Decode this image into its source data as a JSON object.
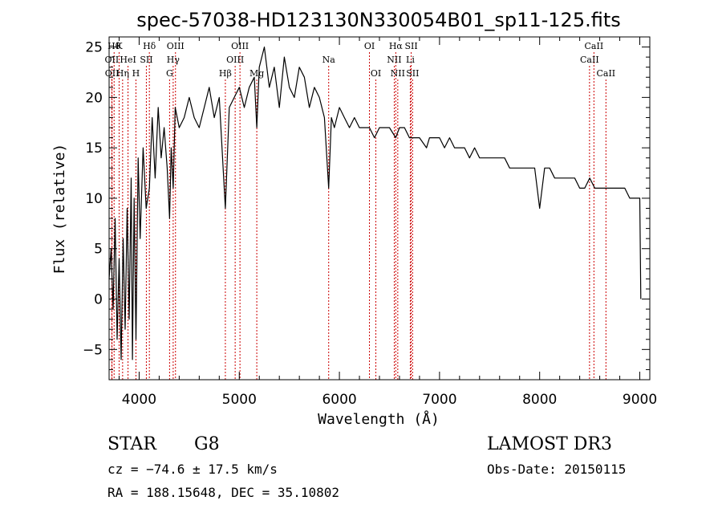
{
  "chart_data": {
    "type": "line",
    "title": "spec-57038-HD123130N330054B01_sp11-125.fits",
    "xlabel": "Wavelength (Å)",
    "ylabel": "Flux (relative)",
    "xlim": [
      3700,
      9100
    ],
    "ylim": [
      -8,
      26
    ],
    "xticks": [
      4000,
      5000,
      6000,
      7000,
      8000,
      9000
    ],
    "yticks": [
      -5,
      0,
      5,
      10,
      15,
      20,
      25
    ],
    "grid": false,
    "legend": "none",
    "colors": {
      "line": "#000000",
      "marker_lines": "#cc0000"
    },
    "series": [
      {
        "name": "",
        "x": [
          3700,
          3720,
          3740,
          3760,
          3780,
          3800,
          3820,
          3840,
          3860,
          3880,
          3900,
          3920,
          3933,
          3950,
          3968,
          3990,
          4010,
          4040,
          4070,
          4102,
          4130,
          4160,
          4190,
          4220,
          4250,
          4280,
          4304,
          4320,
          4340,
          4360,
          4400,
          4450,
          4500,
          4550,
          4600,
          4650,
          4700,
          4750,
          4800,
          4861,
          4900,
          4950,
          5000,
          5050,
          5100,
          5150,
          5175,
          5200,
          5250,
          5300,
          5350,
          5400,
          5450,
          5500,
          5550,
          5600,
          5650,
          5700,
          5750,
          5800,
          5850,
          5893,
          5920,
          5950,
          6000,
          6050,
          6100,
          6150,
          6200,
          6250,
          6300,
          6350,
          6400,
          6450,
          6500,
          6563,
          6600,
          6650,
          6700,
          6750,
          6800,
          6870,
          6900,
          6950,
          7000,
          7050,
          7100,
          7150,
          7200,
          7250,
          7300,
          7350,
          7400,
          7450,
          7500,
          7550,
          7600,
          7650,
          7700,
          7750,
          7800,
          7850,
          7900,
          7950,
          8000,
          8050,
          8100,
          8150,
          8200,
          8250,
          8300,
          8350,
          8400,
          8450,
          8500,
          8550,
          8600,
          8650,
          8700,
          8750,
          8800,
          8850,
          8900,
          8950,
          9000,
          9010
        ],
        "y": [
          2,
          5,
          -1,
          8,
          -4,
          4,
          -6,
          6,
          -3,
          9,
          -2,
          12,
          -6,
          10,
          -4,
          14,
          6,
          15,
          9,
          11,
          18,
          12,
          19,
          14,
          17,
          13,
          8,
          15,
          11,
          19,
          17,
          18,
          20,
          18,
          17,
          19,
          21,
          18,
          20,
          9,
          19,
          20,
          21,
          19,
          21,
          22,
          17,
          23,
          25,
          21,
          23,
          19,
          24,
          21,
          20,
          23,
          22,
          19,
          21,
          20,
          18,
          11,
          18,
          17,
          19,
          18,
          17,
          18,
          17,
          17,
          17,
          16,
          17,
          17,
          17,
          16,
          17,
          17,
          16,
          16,
          16,
          15,
          16,
          16,
          16,
          15,
          16,
          15,
          15,
          15,
          14,
          15,
          14,
          14,
          14,
          14,
          14,
          14,
          13,
          13,
          13,
          13,
          13,
          13,
          9,
          13,
          13,
          12,
          12,
          12,
          12,
          12,
          11,
          11,
          12,
          11,
          11,
          11,
          11,
          11,
          11,
          11,
          10,
          10,
          10,
          0
        ]
      }
    ],
    "line_markers": [
      {
        "label": "Hθ",
        "x": 3750,
        "row": 0
      },
      {
        "label": "K",
        "x": 3800,
        "row": 0
      },
      {
        "label": "Hδ",
        "x": 4102,
        "row": 0
      },
      {
        "label": "OIII",
        "x": 4363,
        "row": 0
      },
      {
        "label": "OIII",
        "x": 5007,
        "row": 0
      },
      {
        "label": "OI",
        "x": 6300,
        "row": 0
      },
      {
        "label": "Hα",
        "x": 6563,
        "row": 0
      },
      {
        "label": "SII",
        "x": 6717,
        "row": 0
      },
      {
        "label": "CaII",
        "x": 8542,
        "row": 0
      },
      {
        "label": "OII",
        "x": 3727,
        "row": 1
      },
      {
        "label": "HeI",
        "x": 3889,
        "row": 1
      },
      {
        "label": "SII",
        "x": 4072,
        "row": 1
      },
      {
        "label": "Hγ",
        "x": 4340,
        "row": 1
      },
      {
        "label": "OIII",
        "x": 4959,
        "row": 1
      },
      {
        "label": "Na",
        "x": 5893,
        "row": 1
      },
      {
        "label": "NII",
        "x": 6548,
        "row": 1
      },
      {
        "label": "Li",
        "x": 6708,
        "row": 1
      },
      {
        "label": "CaII",
        "x": 8498,
        "row": 1
      },
      {
        "label": "OII",
        "x": 3729,
        "row": 2
      },
      {
        "label": "Hη",
        "x": 3835,
        "row": 2
      },
      {
        "label": "H",
        "x": 3968,
        "row": 2
      },
      {
        "label": "G",
        "x": 4304,
        "row": 2
      },
      {
        "label": "Hβ",
        "x": 4861,
        "row": 2
      },
      {
        "label": "Mg",
        "x": 5175,
        "row": 2
      },
      {
        "label": "OI",
        "x": 6364,
        "row": 2
      },
      {
        "label": "NII",
        "x": 6583,
        "row": 2
      },
      {
        "label": "SII",
        "x": 6731,
        "row": 2
      },
      {
        "label": "CaII",
        "x": 8662,
        "row": 2
      }
    ]
  },
  "info": {
    "object_class": "STAR",
    "subclass": "G8",
    "survey": "LAMOST DR3",
    "redshift": "cz = −74.6 ± 17.5 km/s",
    "obs_date": "Obs-Date: 20150115",
    "coords": "RA = 188.15648, DEC =  35.10802"
  }
}
